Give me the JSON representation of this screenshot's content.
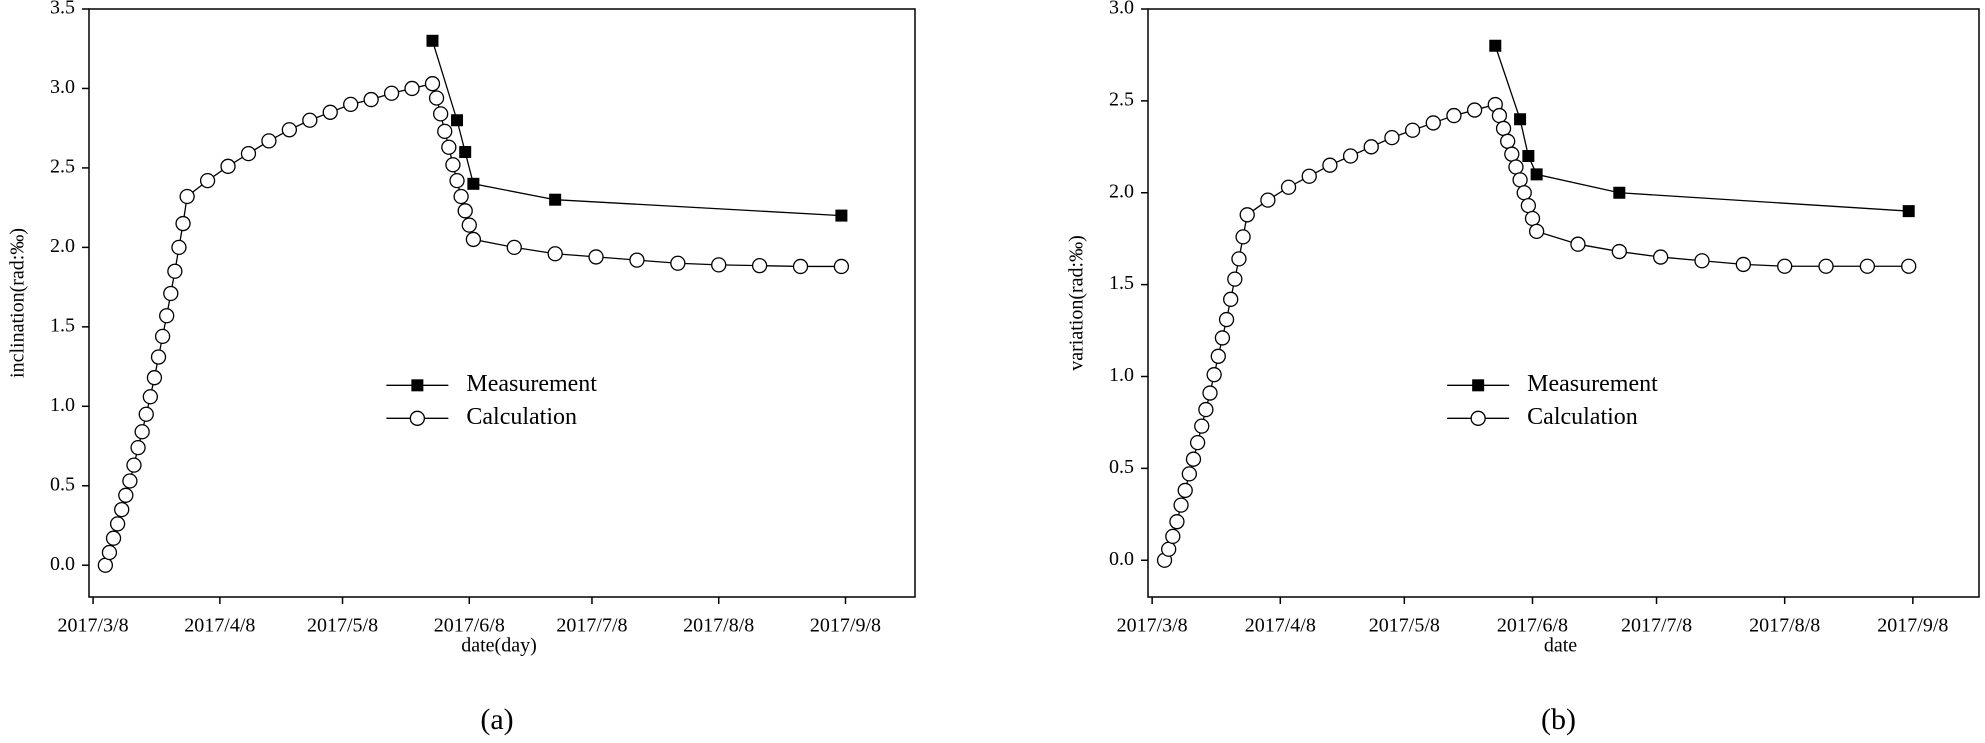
{
  "chart_data": [
    {
      "type": "line",
      "caption": "(a)",
      "x_label": "date(day)",
      "y_label": "inclination(rad:‰)",
      "xlim": [
        "2017/3/7",
        "2017/9/25"
      ],
      "xticks": [
        "2017/3/8",
        "2017/4/8",
        "2017/5/8",
        "2017/6/8",
        "2017/7/8",
        "2017/8/8",
        "2017/9/8"
      ],
      "ylim": [
        -0.2,
        3.5
      ],
      "yticks": [
        {
          "value": 0,
          "label": "0.0"
        },
        0.5,
        {
          "value": 1,
          "label": "1.0"
        },
        1.5,
        {
          "value": 2,
          "label": "2.0"
        },
        2.5,
        {
          "value": 3,
          "label": "3.0"
        },
        3.5
      ],
      "legend": "center",
      "series": [
        {
          "name": "Measurement",
          "color": "#000000",
          "marker": "square",
          "x": [
            "2017/5/30",
            "2017/6/5",
            "2017/6/7",
            "2017/6/9",
            "2017/6/29",
            "2017/9/7"
          ],
          "values": [
            3.3,
            2.8,
            2.6,
            2.4,
            2.3,
            2.2
          ]
        },
        {
          "name": "Calculation",
          "color": "#000000",
          "marker": "circle",
          "x": [
            "2017/3/11",
            "2017/3/12",
            "2017/3/13",
            "2017/3/14",
            "2017/3/15",
            "2017/3/16",
            "2017/3/17",
            "2017/3/18",
            "2017/3/19",
            "2017/3/20",
            "2017/3/21",
            "2017/3/22",
            "2017/3/23",
            "2017/3/24",
            "2017/3/25",
            "2017/3/26",
            "2017/3/27",
            "2017/3/28",
            "2017/3/29",
            "2017/3/30",
            "2017/3/31",
            "2017/4/5",
            "2017/4/10",
            "2017/4/15",
            "2017/4/20",
            "2017/4/25",
            "2017/4/30",
            "2017/5/5",
            "2017/5/10",
            "2017/5/15",
            "2017/5/20",
            "2017/5/25",
            "2017/5/30",
            "2017/5/31",
            "2017/6/1",
            "2017/6/2",
            "2017/6/3",
            "2017/6/4",
            "2017/6/5",
            "2017/6/6",
            "2017/6/7",
            "2017/6/8",
            "2017/6/9",
            "2017/6/19",
            "2017/6/29",
            "2017/7/9",
            "2017/7/19",
            "2017/7/29",
            "2017/8/8",
            "2017/8/18",
            "2017/8/28",
            "2017/9/7"
          ],
          "values": [
            0,
            0.08,
            0.17,
            0.26,
            0.35,
            0.44,
            0.53,
            0.63,
            0.74,
            0.84,
            0.95,
            1.06,
            1.18,
            1.31,
            1.44,
            1.57,
            1.71,
            1.85,
            2.0,
            2.15,
            2.32,
            2.42,
            2.51,
            2.59,
            2.67,
            2.74,
            2.8,
            2.85,
            2.9,
            2.93,
            2.97,
            3.0,
            3.03,
            2.94,
            2.84,
            2.73,
            2.63,
            2.52,
            2.42,
            2.32,
            2.23,
            2.14,
            2.05,
            2.0,
            1.96,
            1.94,
            1.92,
            1.9,
            1.89,
            1.885,
            1.88,
            1.88
          ]
        }
      ]
    },
    {
      "type": "line",
      "caption": "(b)",
      "x_label": "date",
      "y_label": "variation(rad:‰)",
      "xlim": [
        "2017/3/7",
        "2017/9/24"
      ],
      "xticks": [
        "2017/3/8",
        "2017/4/8",
        "2017/5/8",
        "2017/6/8",
        "2017/7/8",
        "2017/8/8",
        "2017/9/8"
      ],
      "ylim": [
        -0.2,
        3.0
      ],
      "yticks": [
        {
          "value": 0,
          "label": "0.0"
        },
        0.5,
        {
          "value": 1,
          "label": "1.0"
        },
        1.5,
        {
          "value": 2,
          "label": "2.0"
        },
        2.5,
        {
          "value": 3,
          "label": "3.0"
        }
      ],
      "legend": "center",
      "series": [
        {
          "name": "Measurement",
          "color": "#000000",
          "marker": "square",
          "x": [
            "2017/5/30",
            "2017/6/5",
            "2017/6/7",
            "2017/6/9",
            "2017/6/29",
            "2017/9/7"
          ],
          "values": [
            2.8,
            2.4,
            2.2,
            2.1,
            2.0,
            1.9
          ]
        },
        {
          "name": "Calculation",
          "color": "#000000",
          "marker": "circle",
          "x": [
            "2017/3/11",
            "2017/3/12",
            "2017/3/13",
            "2017/3/14",
            "2017/3/15",
            "2017/3/16",
            "2017/3/17",
            "2017/3/18",
            "2017/3/19",
            "2017/3/20",
            "2017/3/21",
            "2017/3/22",
            "2017/3/23",
            "2017/3/24",
            "2017/3/25",
            "2017/3/26",
            "2017/3/27",
            "2017/3/28",
            "2017/3/29",
            "2017/3/30",
            "2017/3/31",
            "2017/4/5",
            "2017/4/10",
            "2017/4/15",
            "2017/4/20",
            "2017/4/25",
            "2017/4/30",
            "2017/5/5",
            "2017/5/10",
            "2017/5/15",
            "2017/5/20",
            "2017/5/25",
            "2017/5/30",
            "2017/5/31",
            "2017/6/1",
            "2017/6/2",
            "2017/6/3",
            "2017/6/4",
            "2017/6/5",
            "2017/6/6",
            "2017/6/7",
            "2017/6/8",
            "2017/6/9",
            "2017/6/19",
            "2017/6/29",
            "2017/7/9",
            "2017/7/19",
            "2017/7/29",
            "2017/8/8",
            "2017/8/18",
            "2017/8/28",
            "2017/9/7"
          ],
          "values": [
            0,
            0.06,
            0.13,
            0.21,
            0.3,
            0.38,
            0.47,
            0.55,
            0.64,
            0.73,
            0.82,
            0.91,
            1.01,
            1.11,
            1.21,
            1.31,
            1.42,
            1.53,
            1.64,
            1.76,
            1.88,
            1.96,
            2.03,
            2.09,
            2.15,
            2.2,
            2.25,
            2.3,
            2.34,
            2.38,
            2.42,
            2.45,
            2.48,
            2.42,
            2.35,
            2.28,
            2.21,
            2.14,
            2.07,
            2.0,
            1.93,
            1.86,
            1.79,
            1.72,
            1.68,
            1.65,
            1.63,
            1.61,
            1.6,
            1.6,
            1.6,
            1.6
          ]
        }
      ]
    }
  ]
}
